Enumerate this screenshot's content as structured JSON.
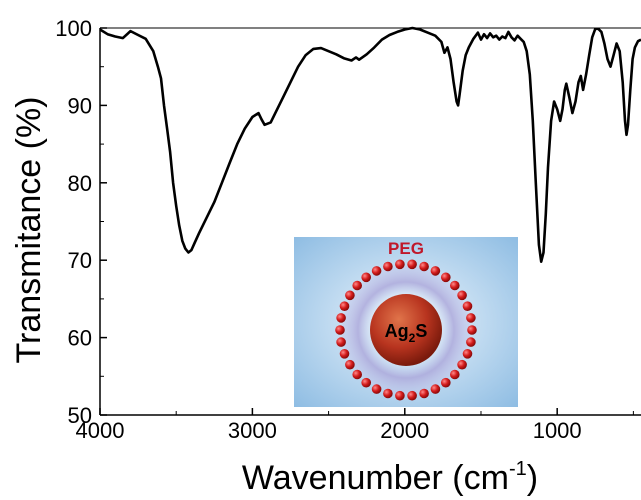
{
  "chart_data": {
    "type": "line",
    "xlabel": "Wavenumber (cm",
    "xlabel_sup": "-1",
    "xlabel_close": ")",
    "ylabel": "Transmitance (%)",
    "xlim": [
      4000,
      450
    ],
    "ylim": [
      50,
      100
    ],
    "x_reversed": true,
    "xticks": [
      4000,
      3000,
      2000,
      1000
    ],
    "yticks": [
      50,
      60,
      70,
      80,
      90,
      100
    ],
    "grid": false,
    "legend": "none",
    "line_color": "#000000",
    "series": [
      {
        "points": [
          [
            4000,
            99.8
          ],
          [
            3950,
            99.2
          ],
          [
            3900,
            98.9
          ],
          [
            3850,
            98.7
          ],
          [
            3800,
            99.6
          ],
          [
            3750,
            99.1
          ],
          [
            3700,
            98.6
          ],
          [
            3650,
            97.0
          ],
          [
            3620,
            95.0
          ],
          [
            3600,
            93.5
          ],
          [
            3580,
            90.0
          ],
          [
            3560,
            87.0
          ],
          [
            3540,
            84.0
          ],
          [
            3520,
            80.0
          ],
          [
            3500,
            77.0
          ],
          [
            3480,
            74.5
          ],
          [
            3460,
            72.5
          ],
          [
            3440,
            71.5
          ],
          [
            3420,
            71.0
          ],
          [
            3400,
            71.3
          ],
          [
            3380,
            72.2
          ],
          [
            3350,
            73.5
          ],
          [
            3300,
            75.5
          ],
          [
            3250,
            77.5
          ],
          [
            3200,
            80.0
          ],
          [
            3150,
            82.5
          ],
          [
            3100,
            85.0
          ],
          [
            3050,
            87.0
          ],
          [
            3000,
            88.5
          ],
          [
            2960,
            89.0
          ],
          [
            2940,
            88.2
          ],
          [
            2920,
            87.5
          ],
          [
            2880,
            87.8
          ],
          [
            2850,
            89.0
          ],
          [
            2800,
            91.0
          ],
          [
            2750,
            93.0
          ],
          [
            2700,
            95.0
          ],
          [
            2650,
            96.5
          ],
          [
            2600,
            97.3
          ],
          [
            2550,
            97.4
          ],
          [
            2500,
            97.0
          ],
          [
            2450,
            96.6
          ],
          [
            2400,
            96.1
          ],
          [
            2350,
            95.8
          ],
          [
            2320,
            96.2
          ],
          [
            2300,
            95.9
          ],
          [
            2250,
            96.6
          ],
          [
            2200,
            97.5
          ],
          [
            2150,
            98.5
          ],
          [
            2100,
            99.1
          ],
          [
            2050,
            99.5
          ],
          [
            2000,
            99.8
          ],
          [
            1950,
            100.0
          ],
          [
            1900,
            99.8
          ],
          [
            1850,
            99.4
          ],
          [
            1800,
            99.0
          ],
          [
            1760,
            98.2
          ],
          [
            1740,
            96.8
          ],
          [
            1720,
            97.5
          ],
          [
            1700,
            96.0
          ],
          [
            1680,
            93.0
          ],
          [
            1660,
            90.5
          ],
          [
            1650,
            90.0
          ],
          [
            1640,
            91.5
          ],
          [
            1620,
            94.5
          ],
          [
            1600,
            96.5
          ],
          [
            1580,
            97.5
          ],
          [
            1550,
            98.6
          ],
          [
            1520,
            99.4
          ],
          [
            1500,
            98.5
          ],
          [
            1480,
            99.2
          ],
          [
            1460,
            98.7
          ],
          [
            1440,
            99.3
          ],
          [
            1420,
            98.8
          ],
          [
            1400,
            99.0
          ],
          [
            1380,
            98.5
          ],
          [
            1360,
            98.9
          ],
          [
            1340,
            98.7
          ],
          [
            1320,
            99.5
          ],
          [
            1300,
            98.8
          ],
          [
            1280,
            98.4
          ],
          [
            1260,
            99.0
          ],
          [
            1240,
            98.6
          ],
          [
            1220,
            98.2
          ],
          [
            1200,
            97.0
          ],
          [
            1180,
            94.0
          ],
          [
            1160,
            88.0
          ],
          [
            1140,
            80.0
          ],
          [
            1120,
            72.0
          ],
          [
            1105,
            69.8
          ],
          [
            1090,
            71.0
          ],
          [
            1075,
            76.0
          ],
          [
            1060,
            82.0
          ],
          [
            1040,
            88.0
          ],
          [
            1020,
            90.5
          ],
          [
            1000,
            89.5
          ],
          [
            980,
            88.0
          ],
          [
            965,
            89.5
          ],
          [
            950,
            92.0
          ],
          [
            940,
            92.8
          ],
          [
            920,
            91.0
          ],
          [
            900,
            89.0
          ],
          [
            880,
            90.5
          ],
          [
            860,
            93.0
          ],
          [
            845,
            93.8
          ],
          [
            830,
            92.0
          ],
          [
            810,
            94.0
          ],
          [
            790,
            96.5
          ],
          [
            770,
            98.8
          ],
          [
            750,
            99.9
          ],
          [
            730,
            99.9
          ],
          [
            710,
            99.5
          ],
          [
            690,
            98.0
          ],
          [
            670,
            96.0
          ],
          [
            650,
            95.0
          ],
          [
            630,
            96.5
          ],
          [
            610,
            98.0
          ],
          [
            590,
            97.0
          ],
          [
            570,
            93.0
          ],
          [
            555,
            88.0
          ],
          [
            545,
            86.2
          ],
          [
            535,
            87.5
          ],
          [
            520,
            92.0
          ],
          [
            505,
            96.0
          ],
          [
            490,
            97.5
          ],
          [
            470,
            98.3
          ],
          [
            450,
            98.5
          ]
        ]
      }
    ],
    "inset": {
      "label": "PEG",
      "core_label": "Ag",
      "core_subscript": "2",
      "core_suffix": "S",
      "label_color": "#c0182a",
      "core_color": "#b8341f",
      "bead_color": "#d41c1c",
      "background_color": "#9fc8e8"
    }
  }
}
